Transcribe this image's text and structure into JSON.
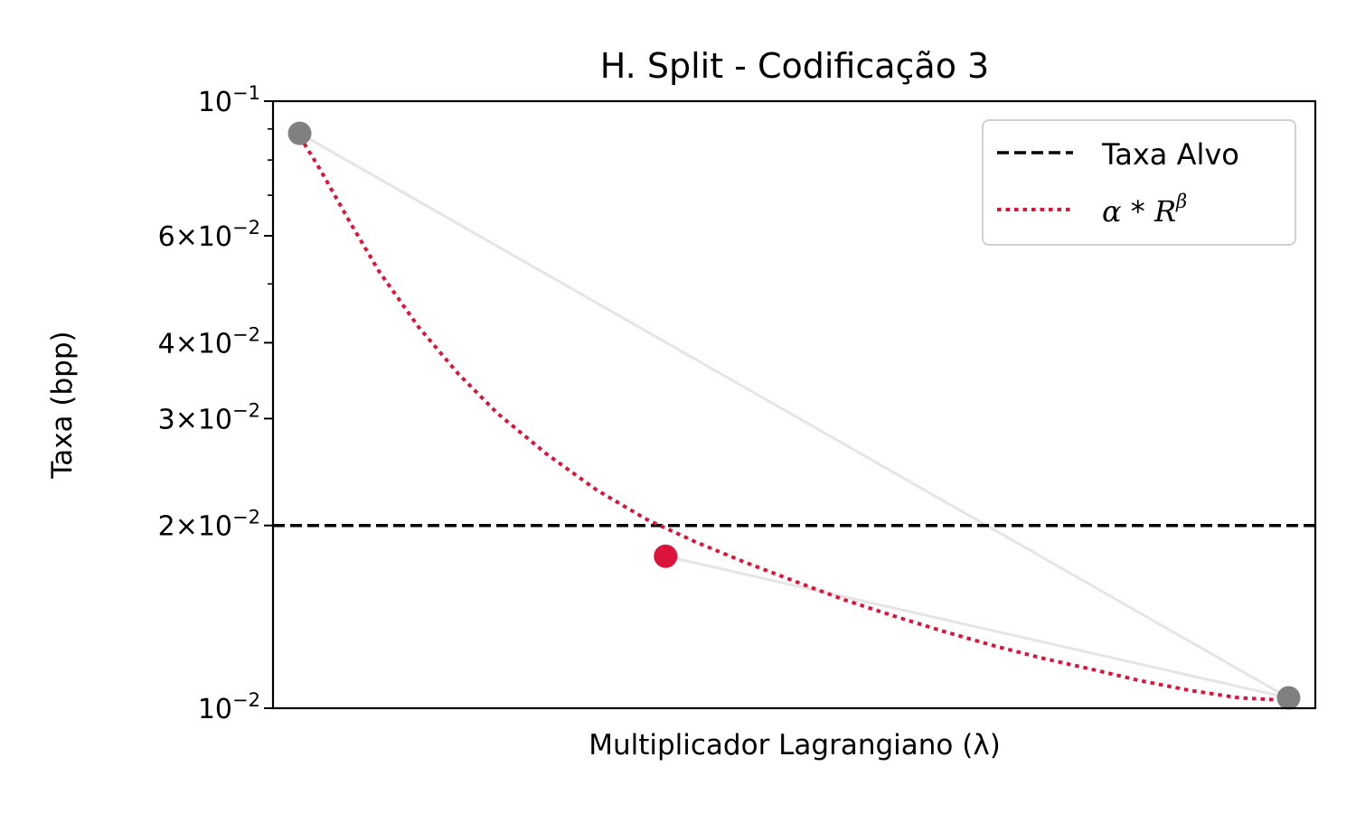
{
  "chart_data": {
    "type": "line",
    "title": "H. Split - Codificação 3",
    "xlabel": "Multiplicador Lagrangiano (λ)",
    "ylabel": "Taxa (bpp)",
    "yscale": "log",
    "ylim": [
      0.01,
      0.1
    ],
    "xlim": [
      -0.027,
      1.027
    ],
    "xticks_visible": false,
    "y_major_ticks": [
      {
        "value": 0.1,
        "mant": "",
        "exp": "−1"
      },
      {
        "value": 0.06,
        "mant": "6",
        "exp": "−2"
      },
      {
        "value": 0.04,
        "mant": "4",
        "exp": "−2"
      },
      {
        "value": 0.03,
        "mant": "3",
        "exp": "−2"
      },
      {
        "value": 0.02,
        "mant": "2",
        "exp": "−2"
      },
      {
        "value": 0.01,
        "mant": "",
        "exp": "−2"
      }
    ],
    "y_minor_ticks": [
      0.09,
      0.08,
      0.07,
      0.05
    ],
    "grid": false,
    "legend_position": "top-right",
    "series": [
      {
        "kind": "hline",
        "name": "Taxa Alvo",
        "y": 0.02,
        "color": "#000000",
        "style": "dashed"
      },
      {
        "kind": "fit_curve",
        "name_parts": {
          "alpha": "α",
          "op": " * ",
          "base": "R",
          "exp": "β"
        },
        "color": "#dc143c",
        "style": "dotted",
        "x": [
          0.0,
          0.02,
          0.05,
          0.08,
          0.12,
          0.16,
          0.2,
          0.25,
          0.3,
          0.35,
          0.4,
          0.45,
          0.5,
          0.55,
          0.6,
          0.65,
          0.7,
          0.75,
          0.8,
          0.85,
          0.9,
          0.95,
          1.0
        ],
        "y": [
          0.0875,
          0.0775,
          0.0635,
          0.0525,
          0.0425,
          0.0356,
          0.0306,
          0.0262,
          0.0229,
          0.0205,
          0.0188,
          0.0174,
          0.0162,
          0.0151,
          0.0142,
          0.0134,
          0.0127,
          0.0121,
          0.0116,
          0.0111,
          0.0107,
          0.0104,
          0.0103
        ]
      },
      {
        "kind": "path",
        "color": "#e5e5e5",
        "x": [
          0.0,
          1.0,
          0.37
        ],
        "y": [
          0.0885,
          0.0104,
          0.0178
        ]
      },
      {
        "kind": "points",
        "points": [
          {
            "x": 0.0,
            "y": 0.0885,
            "color": "#808080"
          },
          {
            "x": 0.37,
            "y": 0.0178,
            "color": "#dc143c"
          },
          {
            "x": 1.0,
            "y": 0.0104,
            "color": "#808080"
          }
        ]
      }
    ]
  }
}
